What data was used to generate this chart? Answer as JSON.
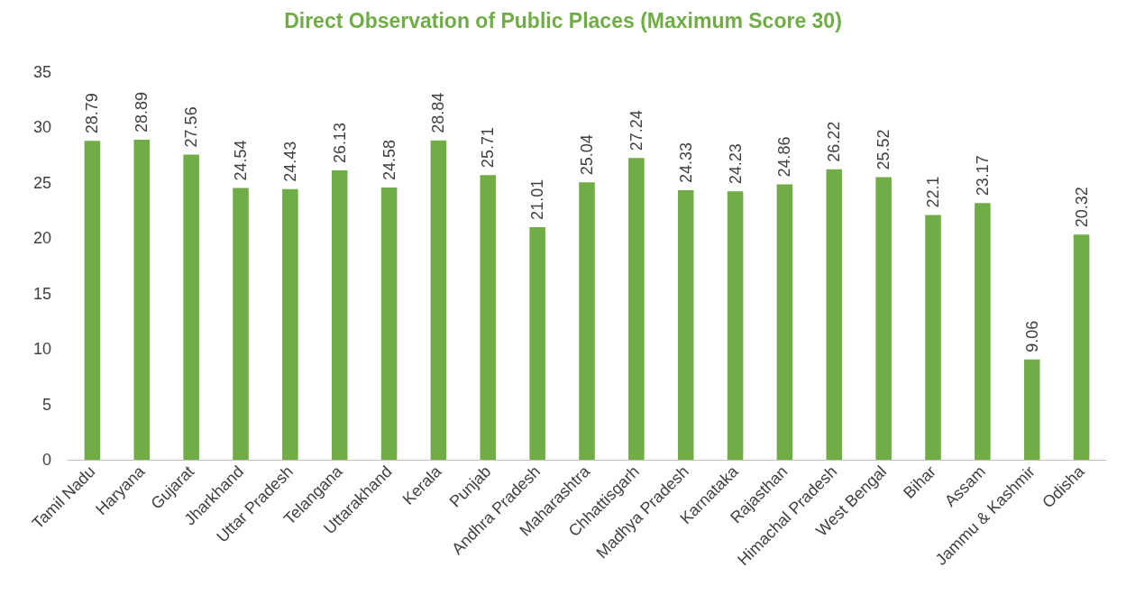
{
  "chart_data": {
    "type": "bar",
    "title": "Direct Observation of Public Places (Maximum Score 30)",
    "categories": [
      "Tamil Nadu",
      "Haryana",
      "Gujarat",
      "Jharkhand",
      "Uttar Pradesh",
      "Telangana",
      "Uttarakhand",
      "Kerala",
      "Punjab",
      "Andhra Pradesh",
      "Maharashtra",
      "Chhattisgarh",
      "Madhya Pradesh",
      "Karnataka",
      "Rajasthan",
      "Himachal Pradesh",
      "West Bengal",
      "Bihar",
      "Assam",
      "Jammu & Kashmir",
      "Odisha"
    ],
    "values": [
      28.79,
      28.89,
      27.56,
      24.54,
      24.43,
      26.13,
      24.58,
      28.84,
      25.71,
      21.01,
      25.04,
      27.24,
      24.33,
      24.23,
      24.86,
      26.22,
      25.52,
      22.1,
      23.17,
      9.06,
      20.32
    ],
    "color": "#70ad47",
    "ylim": [
      0,
      35
    ],
    "yticks": [
      0,
      5,
      10,
      15,
      20,
      25,
      30,
      35
    ],
    "data_labels": true,
    "grid": false
  }
}
